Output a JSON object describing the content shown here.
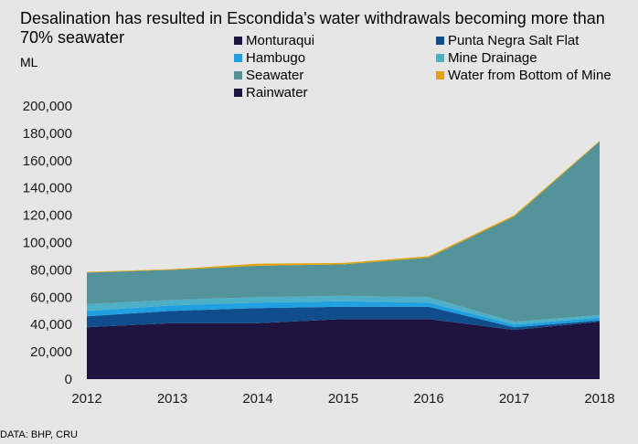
{
  "chart_data": {
    "type": "area",
    "stacked": true,
    "title": "Desalination has resulted in Escondida's water withdrawals becoming more than 70% seawater",
    "ylabel": "ML",
    "source": "DATA: BHP, CRU",
    "x": [
      "2012",
      "2013",
      "2014",
      "2015",
      "2016",
      "2017",
      "2018"
    ],
    "ylim": [
      0,
      200000
    ],
    "yticks": [
      0,
      20000,
      40000,
      60000,
      80000,
      100000,
      120000,
      140000,
      160000,
      180000,
      200000
    ],
    "ytick_labels": [
      "0",
      "20,000",
      "40,000",
      "60,000",
      "80,000",
      "100,000",
      "120,000",
      "140,000",
      "160,000",
      "180,000",
      "200,000"
    ],
    "grid": false,
    "legend_position": "top-right",
    "legend_order": [
      "Monturaqui",
      "Punta Negra Salt Flat",
      "Hambugo",
      "Mine Drainage",
      "Seawater",
      "Water from Bottom of Mine",
      "Rainwater"
    ],
    "series": [
      {
        "name": "Rainwater",
        "color": "#1f1440",
        "values": [
          38000,
          41000,
          41000,
          44000,
          44000,
          36000,
          42000
        ]
      },
      {
        "name": "Monturaqui",
        "color": "#1f1440",
        "values": [
          0,
          0,
          0,
          0,
          0,
          0,
          0
        ]
      },
      {
        "name": "Punta Negra Salt Flat",
        "color": "#0f4d8c",
        "values": [
          8000,
          9000,
          11000,
          9000,
          9000,
          2000,
          1000
        ]
      },
      {
        "name": "Hambugo",
        "color": "#1fa0e0",
        "values": [
          4000,
          4000,
          4000,
          4000,
          3000,
          2000,
          2000
        ]
      },
      {
        "name": "Mine Drainage",
        "color": "#4db0c6",
        "values": [
          5000,
          4000,
          4000,
          4000,
          4000,
          2000,
          2000
        ]
      },
      {
        "name": "Seawater",
        "color": "#55939a",
        "values": [
          23000,
          22000,
          23000,
          23000,
          29000,
          77000,
          127000
        ]
      },
      {
        "name": "Water from Bottom of Mine",
        "color": "#e3a300",
        "values": [
          500,
          500,
          1500,
          1000,
          1000,
          1000,
          500
        ]
      }
    ]
  }
}
